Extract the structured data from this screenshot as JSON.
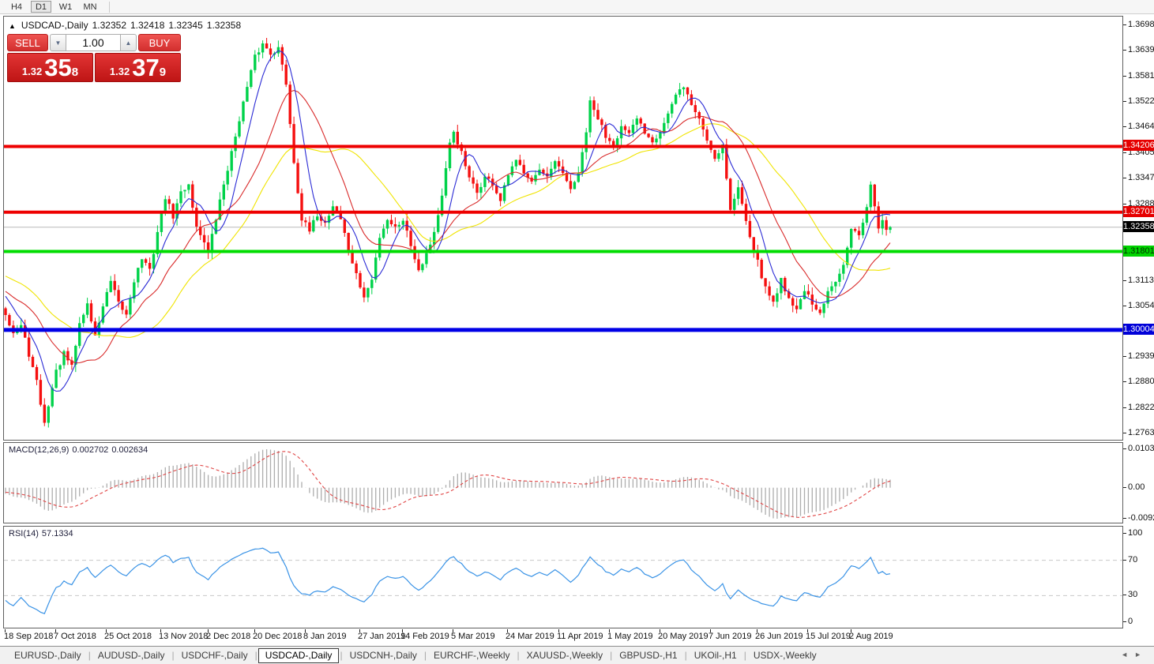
{
  "toolbar": {
    "timeframes": [
      {
        "label": "H4",
        "active": false
      },
      {
        "label": "D1",
        "active": true
      },
      {
        "label": "W1",
        "active": false
      },
      {
        "label": "MN",
        "active": false
      }
    ]
  },
  "chart": {
    "collapse_icon": "▲",
    "title": "USDCAD-,Daily",
    "ohlc": {
      "open": "1.32352",
      "high": "1.32418",
      "low": "1.32345",
      "close": "1.32358"
    },
    "trade_panel": {
      "sell_label": "SELL",
      "buy_label": "BUY",
      "volume": "1.00",
      "spinner_down": "▼",
      "spinner_up": "▲",
      "sell_price": {
        "base": "1.32",
        "big": "35",
        "sup": "8"
      },
      "buy_price": {
        "base": "1.32",
        "big": "37",
        "sup": "9"
      }
    },
    "price_axis": {
      "top_price": 1.3698,
      "bottom_price": 1.27635,
      "labels": [
        "1.36980",
        "1.36395",
        "1.35810",
        "1.35225",
        "1.34640",
        "1.34055",
        "1.33470",
        "1.32885",
        "1.31715",
        "1.31130",
        "1.30545",
        "1.29390",
        "1.28805",
        "1.28220",
        "1.27635"
      ]
    },
    "levels": [
      {
        "value": 1.34206,
        "label": "1.34206",
        "color": "#ee0000",
        "thickness": 4,
        "badge_bg": "#e60000",
        "badge_fg": "#ffffff"
      },
      {
        "value": 1.32701,
        "label": "1.32701",
        "color": "#ee0000",
        "thickness": 4,
        "badge_bg": "#e60000",
        "badge_fg": "#ffffff"
      },
      {
        "value": 1.31801,
        "label": "1.31801",
        "color": "#00dd00",
        "thickness": 4,
        "badge_bg": "#00d300",
        "badge_fg": "#003300"
      },
      {
        "value": 1.30004,
        "label": "1.30004",
        "color": "#0000e6",
        "thickness": 5,
        "badge_bg": "#0000d8",
        "badge_fg": "#ffffff"
      }
    ],
    "current_price": {
      "value": 1.32358,
      "label": "1.32358",
      "line_color": "#b8b8b8",
      "badge_bg": "#000000",
      "badge_fg": "#ffffff"
    },
    "candle_colors": {
      "bull": "#00d24a",
      "bear": "#f50f0f"
    },
    "moving_averages": [
      {
        "period": 34,
        "color": "#f0e400"
      },
      {
        "period": 18,
        "color": "#d92b2b"
      },
      {
        "period": 7,
        "color": "#2b2bd5"
      }
    ],
    "chart_data": {
      "type": "candlestick-anchors",
      "symbol": "USDCAD",
      "timeframe": "Daily",
      "visible_candles": 228,
      "pre_history": 60,
      "anchors": [
        [
          -60,
          1.315
        ],
        [
          -48,
          1.306
        ],
        [
          -36,
          1.313
        ],
        [
          -24,
          1.319
        ],
        [
          -12,
          1.308
        ],
        [
          -4,
          1.31
        ],
        [
          0,
          1.304
        ],
        [
          2,
          1.2995
        ],
        [
          4,
          1.301
        ],
        [
          6,
          1.2945
        ],
        [
          8,
          1.288
        ],
        [
          10,
          1.2785
        ],
        [
          11,
          1.283
        ],
        [
          13,
          1.2905
        ],
        [
          15,
          1.2945
        ],
        [
          17,
          1.2915
        ],
        [
          19,
          1.3015
        ],
        [
          21,
          1.306
        ],
        [
          23,
          1.2985
        ],
        [
          25,
          1.3055
        ],
        [
          27,
          1.311
        ],
        [
          29,
          1.306
        ],
        [
          31,
          1.3035
        ],
        [
          33,
          1.3115
        ],
        [
          35,
          1.3165
        ],
        [
          37,
          1.3135
        ],
        [
          39,
          1.3225
        ],
        [
          41,
          1.3305
        ],
        [
          43,
          1.326
        ],
        [
          45,
          1.3315
        ],
        [
          47,
          1.3335
        ],
        [
          49,
          1.3235
        ],
        [
          51,
          1.3205
        ],
        [
          52,
          1.3175
        ],
        [
          54,
          1.3255
        ],
        [
          56,
          1.3335
        ],
        [
          58,
          1.3405
        ],
        [
          60,
          1.3485
        ],
        [
          62,
          1.3555
        ],
        [
          64,
          1.3625
        ],
        [
          66,
          1.3655
        ],
        [
          68,
          1.3635
        ],
        [
          70,
          1.3645
        ],
        [
          72,
          1.3565
        ],
        [
          74,
          1.3385
        ],
        [
          76,
          1.3255
        ],
        [
          78,
          1.3225
        ],
        [
          80,
          1.3265
        ],
        [
          82,
          1.3245
        ],
        [
          84,
          1.3285
        ],
        [
          86,
          1.3255
        ],
        [
          88,
          1.3185
        ],
        [
          90,
          1.3125
        ],
        [
          92,
          1.3075
        ],
        [
          94,
          1.3115
        ],
        [
          96,
          1.3215
        ],
        [
          98,
          1.3255
        ],
        [
          100,
          1.3235
        ],
        [
          102,
          1.3255
        ],
        [
          104,
          1.3195
        ],
        [
          106,
          1.314
        ],
        [
          108,
          1.3175
        ],
        [
          110,
          1.3225
        ],
        [
          112,
          1.3305
        ],
        [
          114,
          1.3425
        ],
        [
          115,
          1.3455
        ],
        [
          117,
          1.3405
        ],
        [
          119,
          1.3345
        ],
        [
          121,
          1.3315
        ],
        [
          123,
          1.335
        ],
        [
          125,
          1.3335
        ],
        [
          127,
          1.3295
        ],
        [
          129,
          1.3355
        ],
        [
          131,
          1.3385
        ],
        [
          133,
          1.3365
        ],
        [
          135,
          1.3345
        ],
        [
          137,
          1.3365
        ],
        [
          139,
          1.3345
        ],
        [
          141,
          1.3385
        ],
        [
          143,
          1.3355
        ],
        [
          145,
          1.3325
        ],
        [
          147,
          1.3355
        ],
        [
          149,
          1.3455
        ],
        [
          150,
          1.352
        ],
        [
          152,
          1.3485
        ],
        [
          154,
          1.3445
        ],
        [
          156,
          1.3425
        ],
        [
          158,
          1.3465
        ],
        [
          160,
          1.3445
        ],
        [
          162,
          1.3485
        ],
        [
          164,
          1.3455
        ],
        [
          166,
          1.3435
        ],
        [
          168,
          1.3455
        ],
        [
          170,
          1.3495
        ],
        [
          172,
          1.3535
        ],
        [
          174,
          1.356
        ],
        [
          176,
          1.3515
        ],
        [
          178,
          1.3485
        ],
        [
          180,
          1.3435
        ],
        [
          182,
          1.3395
        ],
        [
          184,
          1.3425
        ],
        [
          186,
          1.3275
        ],
        [
          188,
          1.3325
        ],
        [
          190,
          1.3255
        ],
        [
          192,
          1.3185
        ],
        [
          193,
          1.3155
        ],
        [
          195,
          1.3095
        ],
        [
          197,
          1.3065
        ],
        [
          199,
          1.3115
        ],
        [
          201,
          1.3075
        ],
        [
          203,
          1.3045
        ],
        [
          205,
          1.3095
        ],
        [
          207,
          1.3055
        ],
        [
          209,
          1.3035
        ],
        [
          211,
          1.3085
        ],
        [
          213,
          1.3115
        ],
        [
          215,
          1.3155
        ],
        [
          217,
          1.3235
        ],
        [
          219,
          1.3215
        ],
        [
          221,
          1.3275
        ],
        [
          222,
          1.334
        ],
        [
          223,
          1.3285
        ],
        [
          224,
          1.3235
        ],
        [
          225,
          1.3255
        ],
        [
          226,
          1.3225
        ],
        [
          227,
          1.32358
        ]
      ],
      "dates": [
        {
          "label": "18 Sep 2018",
          "index": 0
        },
        {
          "label": "7 Oct 2018",
          "index": 13
        },
        {
          "label": "25 Oct 2018",
          "index": 26
        },
        {
          "label": "13 Nov 2018",
          "index": 40
        },
        {
          "label": "2 Dec 2018",
          "index": 52
        },
        {
          "label": "20 Dec 2018",
          "index": 64
        },
        {
          "label": "8 Jan 2019",
          "index": 77
        },
        {
          "label": "27 Jan 2019",
          "index": 91
        },
        {
          "label": "14 Feb 2019",
          "index": 102
        },
        {
          "label": "5 Mar 2019",
          "index": 115
        },
        {
          "label": "24 Mar 2019",
          "index": 129
        },
        {
          "label": "11 Apr 2019",
          "index": 142
        },
        {
          "label": "1 May 2019",
          "index": 155
        },
        {
          "label": "20 May 2019",
          "index": 168
        },
        {
          "label": "7 Jun 2019",
          "index": 181
        },
        {
          "label": "26 Jun 2019",
          "index": 193
        },
        {
          "label": "15 Jul 2019",
          "index": 206
        },
        {
          "label": "2 Aug 2019",
          "index": 217
        }
      ]
    }
  },
  "macd": {
    "label": "MACD(12,26,9)",
    "value_main": "0.002702",
    "value_signal": "0.002634",
    "axis_top": "0.010311",
    "axis_zero": "0.00",
    "axis_bottom": "-0.00920",
    "hist_color": "#adadad",
    "signal_color": "#e04545"
  },
  "rsi": {
    "label": "RSI(14)",
    "value": "57.1334",
    "axis": [
      {
        "v": 100,
        "label": "100"
      },
      {
        "v": 70,
        "label": "70"
      },
      {
        "v": 30,
        "label": "30"
      },
      {
        "v": 0,
        "label": "0"
      }
    ],
    "levels": [
      70,
      30
    ],
    "line_color": "#3a93e6",
    "level_color": "#c8c8c8"
  },
  "tabs": {
    "items": [
      {
        "label": "EURUSD-,Daily",
        "active": false
      },
      {
        "label": "AUDUSD-,Daily",
        "active": false
      },
      {
        "label": "USDCHF-,Daily",
        "active": false
      },
      {
        "label": "USDCAD-,Daily",
        "active": true
      },
      {
        "label": "USDCNH-,Daily",
        "active": false
      },
      {
        "label": "EURCHF-,Weekly",
        "active": false
      },
      {
        "label": "XAUUSD-,Weekly",
        "active": false
      },
      {
        "label": "GBPUSD-,H1",
        "active": false
      },
      {
        "label": "UKOil-,H1",
        "active": false
      },
      {
        "label": "USDX-,Weekly",
        "active": false
      }
    ],
    "scroll_left": "◄",
    "scroll_right": "►"
  }
}
